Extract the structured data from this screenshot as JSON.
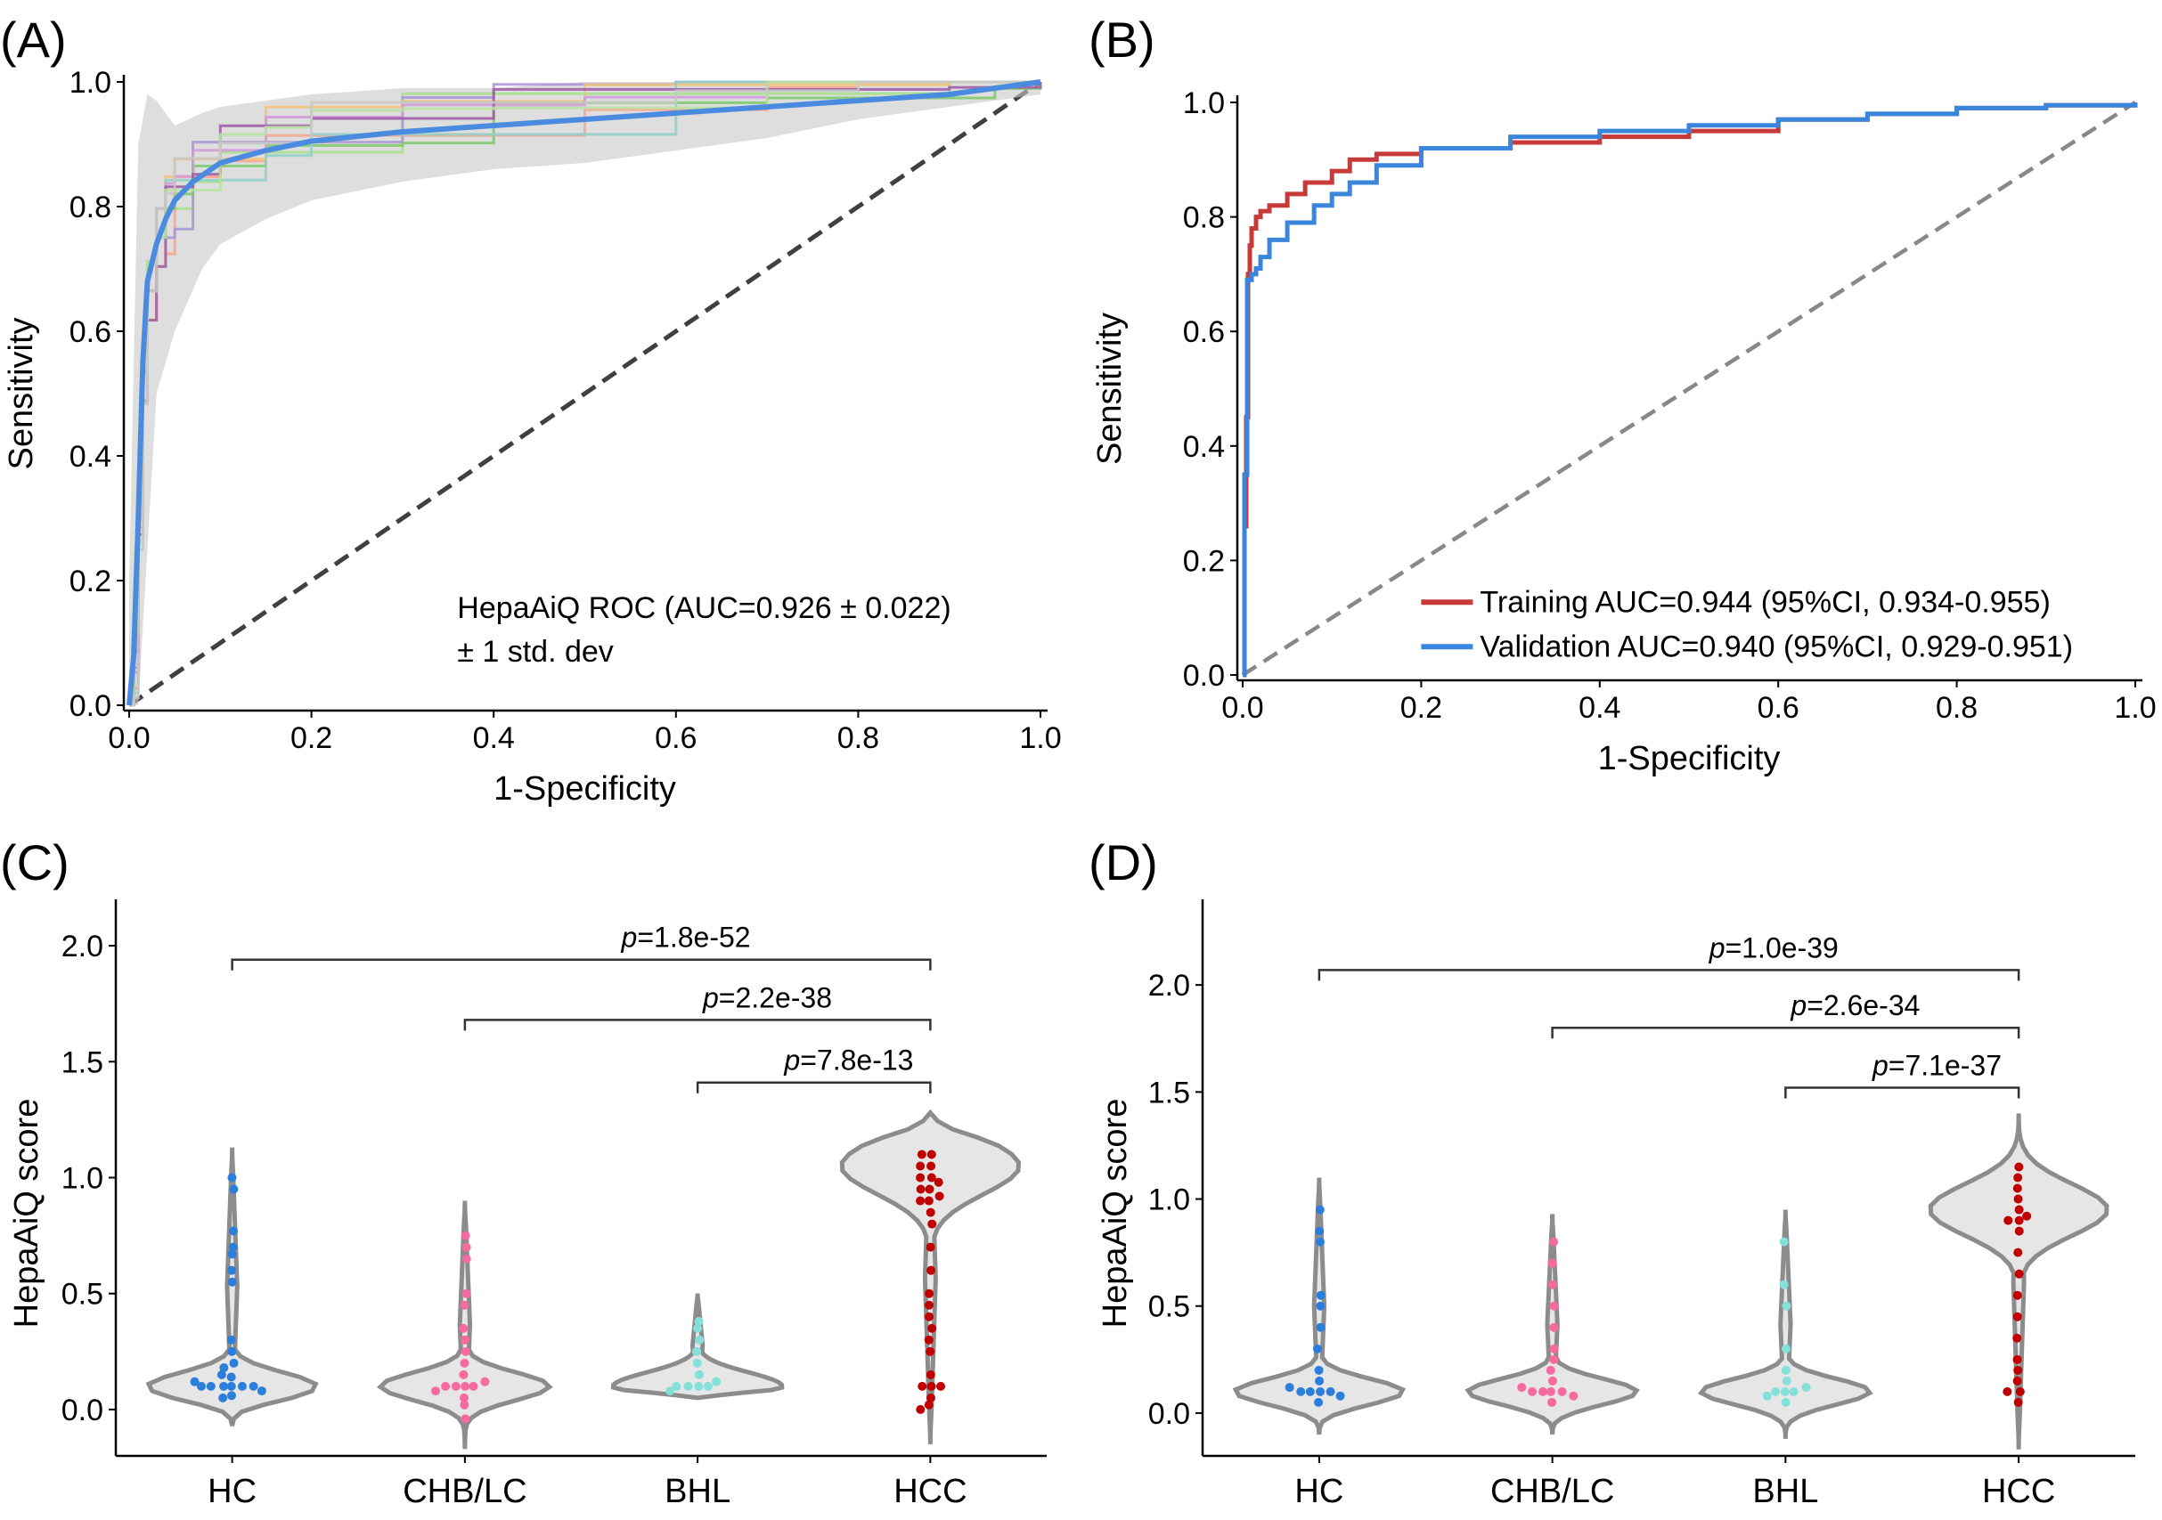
{
  "colors": {
    "hc": "#2b7fdb",
    "chb_lc": "#f76aa0",
    "bhl": "#84e0d9",
    "hcc": "#c00000",
    "train": "#c8393a",
    "validation": "#3a86dd",
    "mean_roc": "#4a8be0",
    "diagonal": "#404040",
    "violin_fill": "#e6e6e6",
    "violin_stroke": "#8c8c8c"
  },
  "chart_data": [
    {
      "id": "A",
      "panel_label": "(A)",
      "type": "line",
      "xlabel": "1-Specificity",
      "ylabel": "Sensitivity",
      "xlim": [
        0,
        1
      ],
      "ylim": [
        0,
        1
      ],
      "xticks": [
        "0.0",
        "0.2",
        "0.4",
        "0.6",
        "0.8",
        "1.0"
      ],
      "yticks": [
        "0.0",
        "0.2",
        "0.4",
        "0.6",
        "0.8",
        "1.0"
      ],
      "legend_lines": [
        "HepaAiQ ROC (AUC=0.926 ± 0.022)",
        "± 1 std. dev"
      ],
      "mean_roc": {
        "x": [
          0,
          0.005,
          0.01,
          0.015,
          0.02,
          0.03,
          0.04,
          0.05,
          0.07,
          0.1,
          0.15,
          0.2,
          0.3,
          0.4,
          0.5,
          0.6,
          0.7,
          0.8,
          0.9,
          0.95,
          1.0
        ],
        "y": [
          0,
          0.08,
          0.3,
          0.55,
          0.68,
          0.74,
          0.78,
          0.81,
          0.84,
          0.87,
          0.89,
          0.905,
          0.92,
          0.93,
          0.94,
          0.95,
          0.96,
          0.97,
          0.98,
          0.99,
          1.0
        ]
      },
      "std_band": {
        "x": [
          0,
          0.01,
          0.02,
          0.03,
          0.05,
          0.08,
          0.1,
          0.15,
          0.2,
          0.3,
          0.4,
          0.5,
          0.6,
          0.7,
          0.8,
          0.9,
          1.0
        ],
        "upper": [
          0.2,
          0.9,
          0.98,
          0.97,
          0.93,
          0.95,
          0.96,
          0.97,
          0.98,
          0.99,
          0.99,
          1.0,
          1.0,
          1.0,
          1.0,
          1.0,
          1.0
        ],
        "lower": [
          0,
          0,
          0.25,
          0.5,
          0.6,
          0.7,
          0.74,
          0.78,
          0.81,
          0.84,
          0.86,
          0.87,
          0.89,
          0.91,
          0.94,
          0.96,
          0.98
        ]
      },
      "fold_colors": [
        "#a7e08a",
        "#f8a58f",
        "#a895d6",
        "#7bc96a",
        "#f4c27a",
        "#8fd1c7",
        "#d19adb",
        "#9c5aa6",
        "#b9e3a0",
        "#c8c8c8"
      ]
    },
    {
      "id": "B",
      "panel_label": "(B)",
      "type": "line",
      "xlabel": "1-Specificity",
      "ylabel": "Sensitivity",
      "xlim": [
        0,
        1
      ],
      "ylim": [
        0,
        1
      ],
      "xticks": [
        "0.0",
        "0.2",
        "0.4",
        "0.6",
        "0.8",
        "1.0"
      ],
      "yticks": [
        "0.0",
        "0.2",
        "0.4",
        "0.6",
        "0.8",
        "1.0"
      ],
      "series": [
        {
          "name": "Training AUC=0.944 (95%CI, 0.934-0.955)",
          "x": [
            0,
            0.002,
            0.004,
            0.006,
            0.008,
            0.01,
            0.015,
            0.02,
            0.03,
            0.05,
            0.07,
            0.1,
            0.12,
            0.15,
            0.2,
            0.3,
            0.4,
            0.5,
            0.6,
            0.7,
            0.8,
            0.9,
            1.0
          ],
          "y": [
            0,
            0.26,
            0.45,
            0.7,
            0.75,
            0.78,
            0.8,
            0.81,
            0.82,
            0.84,
            0.86,
            0.88,
            0.9,
            0.91,
            0.92,
            0.93,
            0.94,
            0.95,
            0.97,
            0.98,
            0.99,
            0.995,
            1.0
          ]
        },
        {
          "name": "Validation AUC=0.940 (95%CI, 0.929-0.951)",
          "x": [
            0,
            0.002,
            0.005,
            0.01,
            0.015,
            0.02,
            0.03,
            0.05,
            0.08,
            0.1,
            0.12,
            0.15,
            0.2,
            0.3,
            0.4,
            0.5,
            0.6,
            0.7,
            0.8,
            0.9,
            1.0
          ],
          "y": [
            0,
            0.35,
            0.69,
            0.7,
            0.71,
            0.73,
            0.76,
            0.79,
            0.82,
            0.84,
            0.86,
            0.89,
            0.92,
            0.94,
            0.95,
            0.96,
            0.97,
            0.98,
            0.99,
            0.995,
            1.0
          ]
        }
      ]
    },
    {
      "id": "C",
      "panel_label": "(C)",
      "type": "scatter",
      "ylabel": "HepaAiQ score",
      "ylim": [
        -0.2,
        2.2
      ],
      "yticks": [
        "0.0",
        "0.5",
        "1.0",
        "1.5",
        "2.0"
      ],
      "categories": [
        "HC",
        "CHB/LC",
        "BHL",
        "HCC"
      ],
      "violins": [
        {
          "min": -0.07,
          "max": 1.13,
          "peak": 0.1
        },
        {
          "min": -0.17,
          "max": 0.9,
          "peak": 0.1
        },
        {
          "min": 0.05,
          "max": 0.5,
          "peak": 0.1
        },
        {
          "min": -0.15,
          "max": 1.28,
          "peak": 1.05
        }
      ],
      "points": [
        {
          "category": "HC",
          "values": [
            0.1,
            0.1,
            0.1,
            0.1,
            0.1,
            0.1,
            0.08,
            0.06,
            0.12,
            0.14,
            0.15,
            0.05,
            0.55,
            0.6,
            0.67,
            0.7,
            0.77,
            0.95,
            1.0,
            0.3,
            0.25,
            0.2,
            0.18
          ]
        },
        {
          "category": "CHB/LC",
          "values": [
            0.1,
            0.1,
            0.1,
            0.1,
            0.12,
            0.08,
            0.05,
            0.02,
            -0.04,
            0.15,
            0.2,
            0.25,
            0.3,
            0.35,
            0.45,
            0.5,
            0.65,
            0.7,
            0.75
          ]
        },
        {
          "category": "BHL",
          "values": [
            0.1,
            0.1,
            0.1,
            0.1,
            0.12,
            0.08,
            0.15,
            0.2,
            0.25,
            0.3,
            0.35,
            0.38
          ]
        },
        {
          "category": "HCC",
          "values": [
            0.9,
            0.9,
            0.95,
            0.95,
            1.0,
            1.0,
            1.05,
            1.05,
            1.1,
            1.1,
            0.85,
            0.8,
            0.7,
            0.6,
            0.5,
            0.45,
            0.4,
            0.35,
            0.3,
            0.25,
            0.15,
            0.1,
            0.1,
            0.1,
            0.05,
            0.02,
            0.0,
            0.98,
            0.92
          ]
        }
      ],
      "comparisons": [
        {
          "from": "HC",
          "to": "HCC",
          "y": 1.94,
          "p_value": "=1.8e-52"
        },
        {
          "from": "CHB/LC",
          "to": "HCC",
          "y": 1.68,
          "p_value": "=2.2e-38"
        },
        {
          "from": "BHL",
          "to": "HCC",
          "y": 1.41,
          "p_value": "=7.8e-13"
        }
      ]
    },
    {
      "id": "D",
      "panel_label": "(D)",
      "type": "scatter",
      "ylabel": "HepaAiQ score",
      "ylim": [
        -0.2,
        2.4
      ],
      "yticks": [
        "0.0",
        "0.5",
        "1.0",
        "1.5",
        "2.0"
      ],
      "categories": [
        "HC",
        "CHB/LC",
        "BHL",
        "HCC"
      ],
      "violins": [
        {
          "min": -0.1,
          "max": 1.1,
          "peak": 0.1
        },
        {
          "min": -0.1,
          "max": 0.93,
          "peak": 0.1
        },
        {
          "min": -0.12,
          "max": 0.95,
          "peak": 0.1
        },
        {
          "min": -0.17,
          "max": 1.4,
          "peak": 0.95
        }
      ],
      "points": [
        {
          "category": "HC",
          "values": [
            0.1,
            0.1,
            0.1,
            0.1,
            0.05,
            0.08,
            0.12,
            0.15,
            0.2,
            0.3,
            0.4,
            0.5,
            0.55,
            0.8,
            0.85,
            0.95
          ]
        },
        {
          "category": "CHB/LC",
          "values": [
            0.1,
            0.1,
            0.1,
            0.1,
            0.08,
            0.05,
            0.12,
            0.15,
            0.2,
            0.25,
            0.3,
            0.4,
            0.5,
            0.6,
            0.7,
            0.8
          ]
        },
        {
          "category": "BHL",
          "values": [
            0.1,
            0.1,
            0.1,
            0.08,
            0.05,
            0.12,
            0.15,
            0.2,
            0.3,
            0.5,
            0.6,
            0.8
          ]
        },
        {
          "category": "HCC",
          "values": [
            0.9,
            0.9,
            0.95,
            1.0,
            1.05,
            1.1,
            1.15,
            0.85,
            0.75,
            0.65,
            0.55,
            0.45,
            0.35,
            0.25,
            0.2,
            0.15,
            0.1,
            0.1,
            0.05,
            0.92
          ]
        }
      ],
      "comparisons": [
        {
          "from": "HC",
          "to": "HCC",
          "y": 2.07,
          "p_value": "=1.0e-39"
        },
        {
          "from": "CHB/LC",
          "to": "HCC",
          "y": 1.8,
          "p_value": "=2.6e-34"
        },
        {
          "from": "BHL",
          "to": "HCC",
          "y": 1.52,
          "p_value": "=7.1e-37"
        }
      ]
    }
  ]
}
